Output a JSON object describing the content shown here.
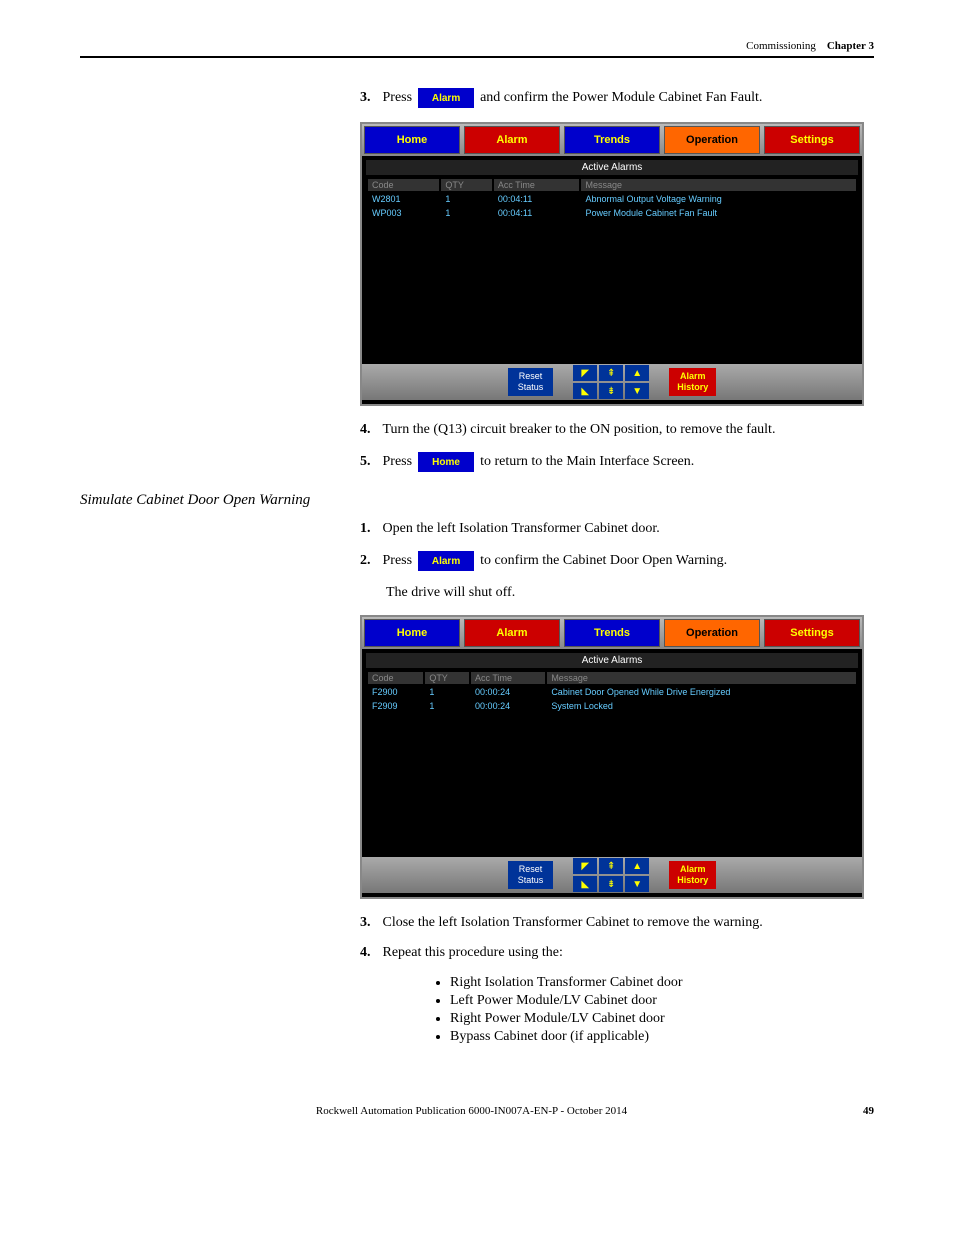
{
  "header": {
    "section": "Commissioning",
    "chapter": "Chapter 3"
  },
  "steps_a": {
    "s3_pre": "3.",
    "s3_press": "Press",
    "s3_btn": "Alarm",
    "s3_post": "and confirm the Power Module Cabinet Fan Fault.",
    "s4": "4.",
    "s4_text": "Turn the (Q13) circuit breaker to the ON position, to remove the fault.",
    "s5_pre": "5.",
    "s5_press": "Press",
    "s5_btn": "Home",
    "s5_post": "to return to the Main Interface Screen."
  },
  "section_title": "Simulate Cabinet Door Open Warning",
  "steps_b": {
    "s1": "1.",
    "s1_text": "Open the left Isolation Transformer Cabinet door.",
    "s2_pre": "2.",
    "s2_press": "Press",
    "s2_btn": "Alarm",
    "s2_post": "to confirm the Cabinet Door Open Warning.",
    "s2_note": "The drive will shut off.",
    "s3": "3.",
    "s3_text": "Close the left Isolation Transformer Cabinet to remove the warning.",
    "s4": "4.",
    "s4_text": "Repeat this procedure using the:",
    "bullets": [
      "Right Isolation Transformer Cabinet door",
      "Left Power Module/LV Cabinet door",
      "Right Power Module/LV Cabinet door",
      "Bypass Cabinet door (if applicable)"
    ]
  },
  "hmi": {
    "tabs": {
      "home": "Home",
      "alarm": "Alarm",
      "trends": "Trends",
      "operation": "Operation",
      "settings": "Settings"
    },
    "active_alarms": "Active Alarms",
    "cols": {
      "code": "Code",
      "qty": "QTY",
      "acc": "Acc Time",
      "msg": "Message"
    },
    "screen1_rows": [
      {
        "code": "W2801",
        "qty": "1",
        "acc": "00:04:11",
        "msg": "Abnormal Output Voltage Warning"
      },
      {
        "code": "WP003",
        "qty": "1",
        "acc": "00:04:11",
        "msg": "Power Module Cabinet Fan Fault"
      }
    ],
    "screen2_rows": [
      {
        "code": "F2900",
        "qty": "1",
        "acc": "00:00:24",
        "msg": "Cabinet Door Opened While Drive Energized"
      },
      {
        "code": "F2909",
        "qty": "1",
        "acc": "00:00:24",
        "msg": "System Locked"
      }
    ],
    "reset": "Reset",
    "status": "Status",
    "alarm_hist1": "Alarm",
    "alarm_hist2": "History",
    "arrows": {
      "top1": "◤",
      "top2": "⇞",
      "top3": "▲",
      "bot1": "◣",
      "bot2": "⇟",
      "bot3": "▼"
    }
  },
  "footer": {
    "pub": "Rockwell Automation Publication 6000-IN007A-EN-P - October 2014",
    "page": "49"
  }
}
